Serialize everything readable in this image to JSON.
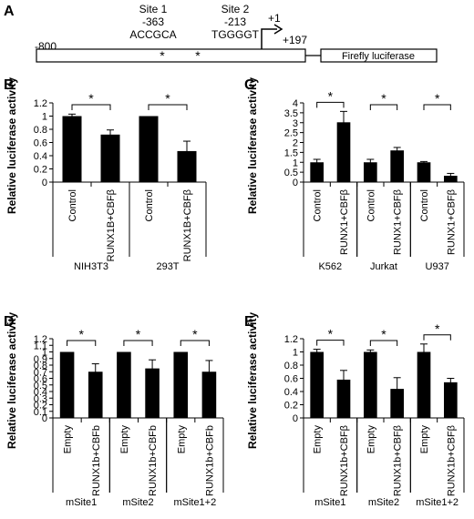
{
  "panel_a": {
    "letter": "A",
    "site1_title": "Site 1",
    "site1_pos": "-363",
    "site1_seq": "ACCGCA",
    "site2_title": "Site 2",
    "site2_pos": "-213",
    "site2_seq": "TGGGGT",
    "tss_label": "+1",
    "start_label": "-800",
    "end_label": "+197",
    "reporter_label": "Firefly luciferase",
    "star1": "*",
    "star2": "*"
  },
  "chart_data": [
    {
      "panel": "B",
      "type": "bar",
      "ylabel": "Relative luciferase activity",
      "ylim": [
        0,
        1.2
      ],
      "yticks": [
        "0",
        "0.2",
        "0.4",
        "0.6",
        "0.8",
        "1",
        "1.2"
      ],
      "categories": [
        "Control",
        "RUNX1B+CBFβ",
        "Control",
        "RUNX1B+CBFβ"
      ],
      "values": [
        1.0,
        0.72,
        1.0,
        0.47
      ],
      "errors": [
        0.03,
        0.07,
        0.0,
        0.15
      ],
      "groups": [
        "NIH3T3",
        "293T"
      ],
      "sig_label": "*"
    },
    {
      "panel": "C",
      "type": "bar",
      "ylabel": "Relative luciferase activity",
      "ylim": [
        0,
        4
      ],
      "yticks": [
        "0",
        "0.5",
        "1",
        "1.5",
        "2",
        "2.5",
        "3",
        "3.5",
        "4"
      ],
      "categories": [
        "Control",
        "RUNX1+CBFβ",
        "Control",
        "RUNX1+CBFβ",
        "Control",
        "RUNX1+CBFβ"
      ],
      "values": [
        1.0,
        3.02,
        1.0,
        1.6,
        1.0,
        0.32
      ],
      "errors": [
        0.15,
        0.55,
        0.15,
        0.15,
        0.04,
        0.12
      ],
      "groups": [
        "K562",
        "Jurkat",
        "U937"
      ],
      "sig_label": "*"
    },
    {
      "panel": "D",
      "type": "bar",
      "ylabel": "Relative luciferase activity",
      "ylim": [
        0,
        1.2
      ],
      "yticks": [
        "0",
        "0.1",
        "0.2",
        "0.3",
        "0.4",
        "0.5",
        "0.6",
        "0.7",
        "0.8",
        "0.9",
        "1",
        "1.1",
        "1.2"
      ],
      "categories": [
        "Empty",
        "RUNX1b+CBFb",
        "Empty",
        "RUNX1b+CBFb",
        "Empty",
        "RUNX1b+CBFb"
      ],
      "values": [
        1.0,
        0.7,
        1.0,
        0.75,
        1.0,
        0.7
      ],
      "errors": [
        0.0,
        0.12,
        0.0,
        0.13,
        0.0,
        0.17
      ],
      "groups": [
        "mSite1",
        "mSite2",
        "mSite1+2"
      ],
      "sig_label": "*"
    },
    {
      "panel": "E",
      "type": "bar",
      "ylabel": "Relative luciferase activity",
      "ylim": [
        0,
        1.2
      ],
      "yticks": [
        "0",
        "0.2",
        "0.4",
        "0.6",
        "0.8",
        "1",
        "1.2"
      ],
      "categories": [
        "Empty",
        "RUNX1b+CBFβ",
        "Empty",
        "RUNX1b+CBFβ",
        "Empty",
        "RUNX1b+CBFβ"
      ],
      "values": [
        1.0,
        0.58,
        1.0,
        0.44,
        1.0,
        0.54
      ],
      "errors": [
        0.04,
        0.14,
        0.03,
        0.17,
        0.12,
        0.06
      ],
      "groups": [
        "mSite1",
        "mSite2",
        "mSite1+2"
      ],
      "sig_label": "*"
    }
  ]
}
